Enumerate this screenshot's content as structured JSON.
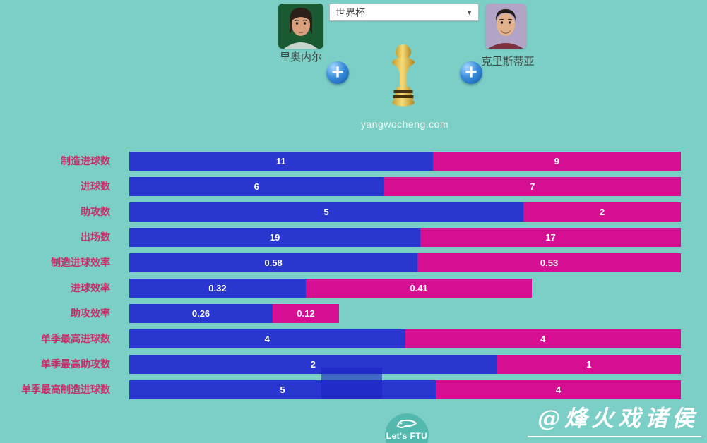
{
  "app": {
    "background_color": "#7ccfc6",
    "watermark": "@烽火戏诸侯"
  },
  "header": {
    "left_player": {
      "name": "里奥内尔",
      "photo_icon": "messi-portrait"
    },
    "right_player": {
      "name": "克里斯蒂亚",
      "photo_icon": "ronaldo-portrait"
    },
    "competition_dropdown": {
      "selected": "世界杯",
      "arrow_icon": "dropdown-arrow"
    },
    "add_left_label": "+",
    "add_right_label": "+",
    "trophy_icon": "world-cup-trophy",
    "site_text": "yangwocheng.com"
  },
  "chart_data": {
    "type": "bar",
    "subtype": "horizontal-stacked-comparison",
    "categories": [
      "制造进球数",
      "进球数",
      "助攻数",
      "出场数",
      "制造进球效率",
      "进球效率",
      "助攻效率",
      "单季最高进球数",
      "单季最高助攻数",
      "单季最高制造进球数"
    ],
    "series": [
      {
        "name": "里奥内尔",
        "color": "#2a36d0",
        "values": [
          11,
          6,
          5,
          19,
          0.58,
          0.32,
          0.26,
          4,
          2,
          5
        ]
      },
      {
        "name": "克里斯蒂亚",
        "color": "#d60e92",
        "values": [
          9,
          7,
          2,
          17,
          0.53,
          0.41,
          0.12,
          4,
          1,
          4
        ]
      }
    ],
    "category_label_color": "#c82d69",
    "value_label_color": "#ffffff",
    "legend_position": "none",
    "grid": false,
    "layout": "each row spans full bar width; left/right segment widths proportional to the two players' values"
  },
  "footer": {
    "logo_text": "Let's FTU",
    "logo_icon": "fish-doodle"
  }
}
